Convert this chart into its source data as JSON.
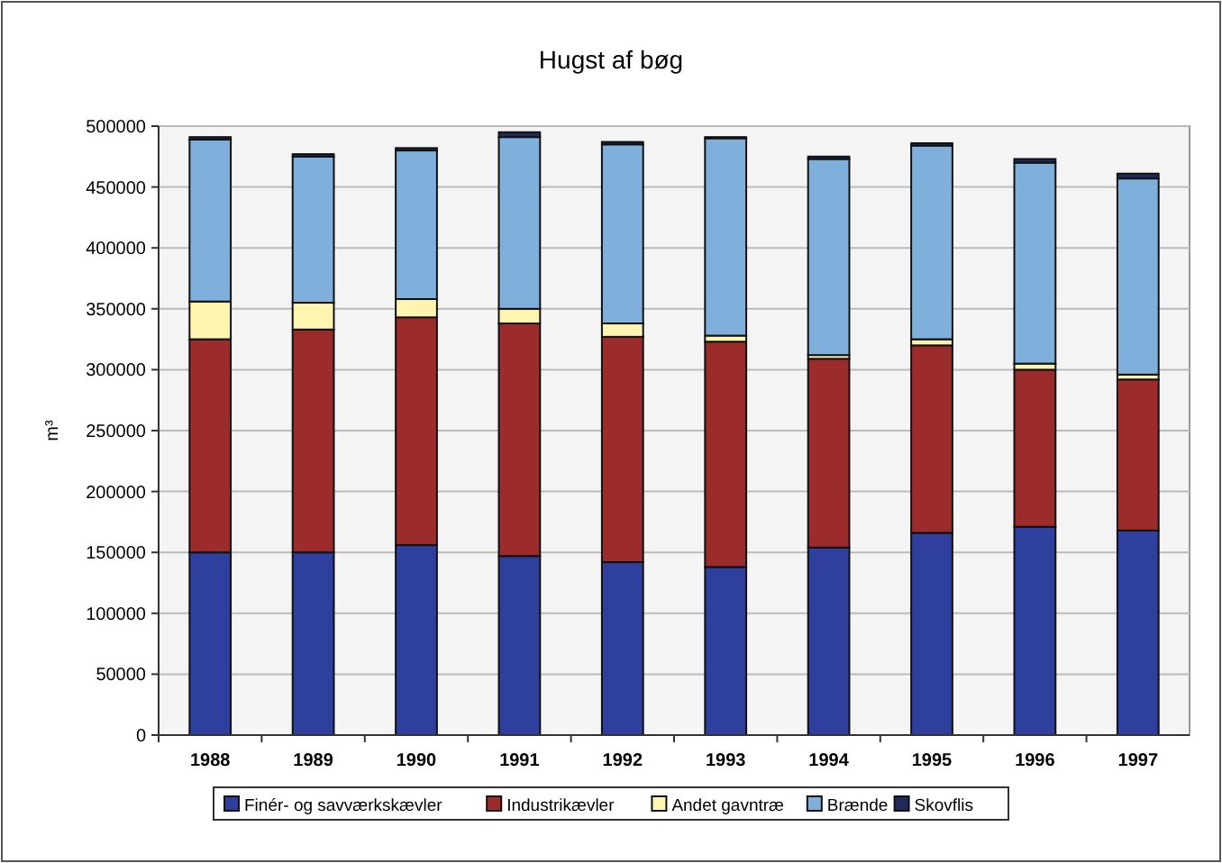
{
  "chart_data": {
    "type": "bar",
    "title": "Hugst af bøg",
    "ylabel": "m³",
    "stacked": true,
    "categories": [
      "1988",
      "1989",
      "1990",
      "1991",
      "1992",
      "1993",
      "1994",
      "1995",
      "1996",
      "1997"
    ],
    "series": [
      {
        "name": "Finér- og savværkskævler",
        "color": "#2e3f9e",
        "values": [
          150000,
          150000,
          156000,
          147000,
          142000,
          138000,
          154000,
          166000,
          171000,
          168000
        ]
      },
      {
        "name": "Industrikævler",
        "color": "#9c2b2b",
        "values": [
          175000,
          183000,
          187000,
          191000,
          185000,
          185000,
          155000,
          154000,
          129000,
          124000
        ]
      },
      {
        "name": "Andet gavntræ",
        "color": "#fff5b0",
        "values": [
          31000,
          22000,
          15000,
          12000,
          11000,
          5000,
          3000,
          5000,
          5000,
          4000
        ]
      },
      {
        "name": "Brænde",
        "color": "#7fb0dc",
        "values": [
          133000,
          120000,
          122000,
          141000,
          147000,
          162000,
          161000,
          159000,
          165000,
          161000
        ]
      },
      {
        "name": "Skovflis",
        "color": "#1f2a5a",
        "values": [
          2000,
          2000,
          2000,
          4000,
          2000,
          1000,
          2000,
          2000,
          3000,
          4000
        ]
      }
    ],
    "ylim": [
      0,
      500000
    ],
    "yticks": [
      0,
      50000,
      100000,
      150000,
      200000,
      250000,
      300000,
      350000,
      400000,
      450000,
      500000
    ],
    "grid": "y",
    "legend": "bottom"
  }
}
